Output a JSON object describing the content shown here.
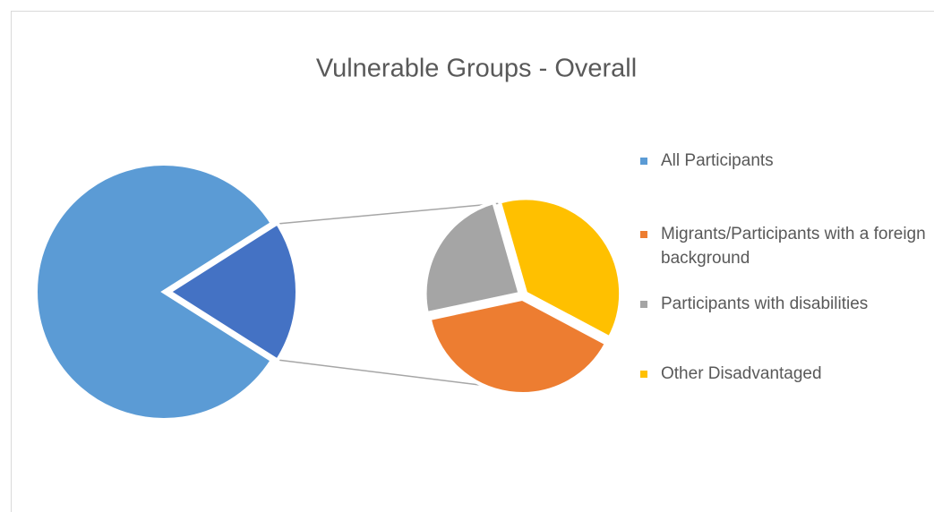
{
  "chart_data": {
    "type": "pie-of-pie",
    "title": "Vulnerable Groups - Overall",
    "categories": [
      "All Participants",
      "Migrants/Participants with a foreign background",
      "Participants with disabilities",
      "Other Disadvantaged"
    ],
    "values": [
      82,
      7,
      4.3,
      6.7
    ],
    "colors": [
      "#5b9bd5",
      "#ed7d31",
      "#a5a5a5",
      "#ffc000"
    ],
    "legend": "right"
  }
}
